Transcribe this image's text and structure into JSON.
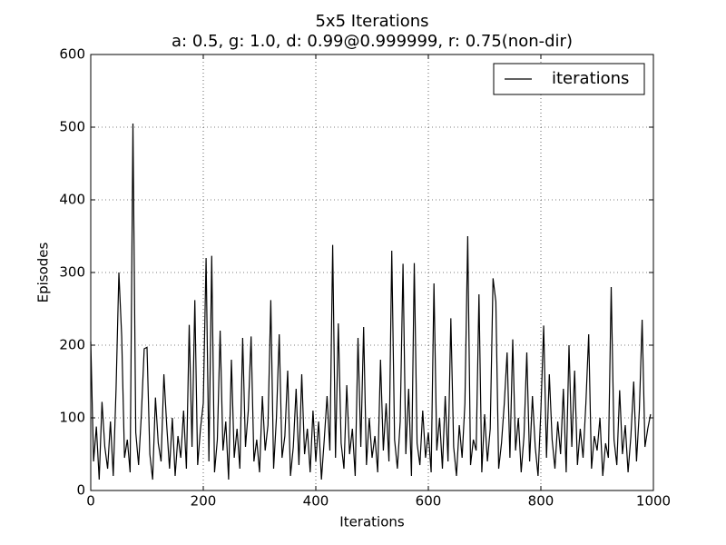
{
  "chart_data": {
    "type": "line",
    "title": "5x5 Iterations",
    "subtitle": "a: 0.5, g: 1.0, d: 0.99@0.999999, r: 0.75(non-dir)",
    "x_label": "Iterations",
    "y_label": "Episodes",
    "xlim": [
      0,
      1000
    ],
    "ylim": [
      0,
      600
    ],
    "xticks": [
      0,
      200,
      400,
      600,
      800,
      1000
    ],
    "yticks": [
      0,
      100,
      200,
      300,
      400,
      500,
      600
    ],
    "grid": true,
    "legend": "upper right",
    "x": [
      0,
      5,
      10,
      15,
      20,
      25,
      30,
      35,
      40,
      45,
      50,
      55,
      60,
      65,
      70,
      75,
      80,
      85,
      90,
      95,
      100,
      105,
      110,
      115,
      120,
      125,
      130,
      135,
      140,
      145,
      150,
      155,
      160,
      165,
      170,
      175,
      180,
      185,
      190,
      195,
      200,
      205,
      210,
      215,
      220,
      225,
      230,
      235,
      240,
      245,
      250,
      255,
      260,
      265,
      270,
      275,
      280,
      285,
      290,
      295,
      300,
      305,
      310,
      315,
      320,
      325,
      330,
      335,
      340,
      345,
      350,
      355,
      360,
      365,
      370,
      375,
      380,
      385,
      390,
      395,
      400,
      405,
      410,
      415,
      420,
      425,
      430,
      435,
      440,
      445,
      450,
      455,
      460,
      465,
      470,
      475,
      480,
      485,
      490,
      495,
      500,
      505,
      510,
      515,
      520,
      525,
      530,
      535,
      540,
      545,
      550,
      555,
      560,
      565,
      570,
      575,
      580,
      585,
      590,
      595,
      600,
      605,
      610,
      615,
      620,
      625,
      630,
      635,
      640,
      645,
      650,
      655,
      660,
      665,
      670,
      675,
      680,
      685,
      690,
      695,
      700,
      705,
      710,
      715,
      720,
      725,
      730,
      735,
      740,
      745,
      750,
      755,
      760,
      765,
      770,
      775,
      780,
      785,
      790,
      795,
      800,
      805,
      810,
      815,
      820,
      825,
      830,
      835,
      840,
      845,
      850,
      855,
      860,
      865,
      870,
      875,
      880,
      885,
      890,
      895,
      900,
      905,
      910,
      915,
      920,
      925,
      930,
      935,
      940,
      945,
      950,
      955,
      960,
      965,
      970,
      975,
      980,
      985,
      990,
      995
    ],
    "series": [
      {
        "name": "iterations",
        "color": "#000000",
        "values": [
          205,
          40,
          88,
          15,
          122,
          60,
          30,
          95,
          20,
          140,
          300,
          212,
          45,
          70,
          25,
          505,
          80,
          35,
          105,
          195,
          197,
          50,
          15,
          128,
          65,
          40,
          160,
          90,
          30,
          100,
          20,
          75,
          45,
          110,
          30,
          228,
          60,
          262,
          35,
          85,
          120,
          320,
          40,
          323,
          25,
          70,
          220,
          55,
          95,
          15,
          180,
          45,
          85,
          30,
          210,
          60,
          110,
          212,
          40,
          70,
          25,
          130,
          55,
          90,
          262,
          30,
          100,
          215,
          45,
          75,
          165,
          20,
          60,
          140,
          35,
          160,
          50,
          85,
          25,
          110,
          40,
          95,
          15,
          70,
          130,
          55,
          338,
          45,
          230,
          65,
          30,
          145,
          50,
          85,
          20,
          210,
          60,
          225,
          35,
          100,
          45,
          75,
          25,
          180,
          55,
          120,
          40,
          330,
          70,
          30,
          95,
          312,
          50,
          140,
          20,
          313,
          65,
          35,
          110,
          45,
          80,
          25,
          285,
          55,
          100,
          30,
          130,
          40,
          237,
          60,
          20,
          90,
          45,
          120,
          350,
          35,
          70,
          55,
          270,
          25,
          105,
          40,
          85,
          292,
          260,
          30,
          65,
          120,
          190,
          45,
          208,
          55,
          100,
          25,
          75,
          190,
          40,
          130,
          60,
          20,
          110,
          227,
          45,
          160,
          70,
          30,
          95,
          50,
          140,
          25,
          200,
          60,
          165,
          35,
          85,
          45,
          120,
          215,
          30,
          75,
          55,
          100,
          20,
          65,
          45,
          280,
          70,
          35,
          138,
          50,
          90,
          25,
          75,
          150,
          40,
          110,
          235,
          60,
          85,
          105
        ]
      }
    ]
  }
}
